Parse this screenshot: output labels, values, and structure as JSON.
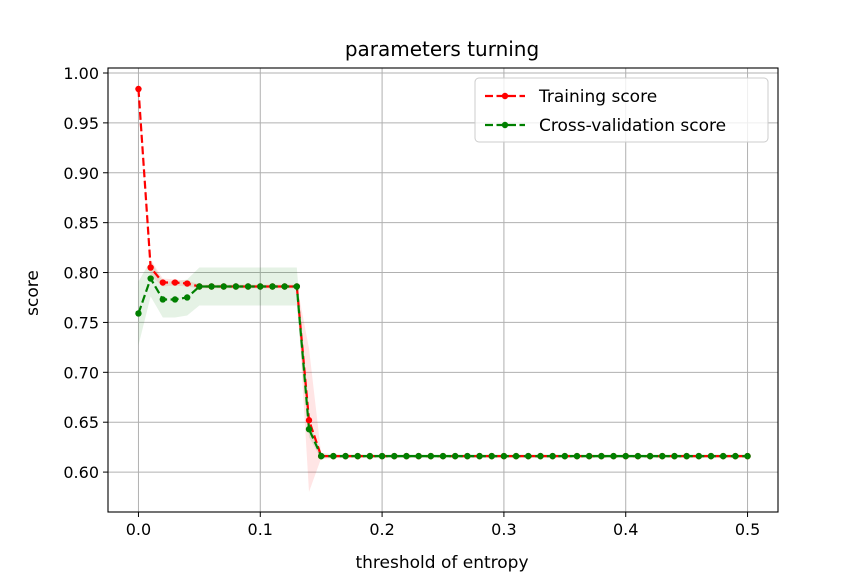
{
  "chart_data": {
    "type": "line",
    "title": "parameters turning",
    "xlabel": "threshold of entropy",
    "ylabel": "score",
    "xlim": [
      -0.025,
      0.525
    ],
    "ylim": [
      0.56,
      1.005
    ],
    "x_ticks": [
      0.0,
      0.1,
      0.2,
      0.3,
      0.4,
      0.5
    ],
    "x_tick_labels": [
      "0.0",
      "0.1",
      "0.2",
      "0.3",
      "0.4",
      "0.5"
    ],
    "y_ticks": [
      0.6,
      0.65,
      0.7,
      0.75,
      0.8,
      0.85,
      0.9,
      0.95,
      1.0
    ],
    "y_tick_labels": [
      "0.60",
      "0.65",
      "0.70",
      "0.75",
      "0.80",
      "0.85",
      "0.90",
      "0.95",
      "1.00"
    ],
    "grid": true,
    "legend_position": "top-right",
    "x": [
      0.0,
      0.01,
      0.02,
      0.03,
      0.04,
      0.05,
      0.06,
      0.07,
      0.08,
      0.09,
      0.1,
      0.11,
      0.12,
      0.13,
      0.14,
      0.15,
      0.16,
      0.17,
      0.18,
      0.19,
      0.2,
      0.21,
      0.22,
      0.23,
      0.24,
      0.25,
      0.26,
      0.27,
      0.28,
      0.29,
      0.3,
      0.31,
      0.32,
      0.33,
      0.34,
      0.35,
      0.36,
      0.37,
      0.38,
      0.39,
      0.4,
      0.41,
      0.42,
      0.43,
      0.44,
      0.45,
      0.46,
      0.47,
      0.48,
      0.49,
      0.5
    ],
    "series": [
      {
        "name": "Training score",
        "color": "#ff0000",
        "values": [
          0.984,
          0.805,
          0.79,
          0.79,
          0.789,
          0.786,
          0.786,
          0.786,
          0.786,
          0.786,
          0.786,
          0.786,
          0.786,
          0.786,
          0.652,
          0.616,
          0.616,
          0.616,
          0.616,
          0.616,
          0.616,
          0.616,
          0.616,
          0.616,
          0.616,
          0.616,
          0.616,
          0.616,
          0.616,
          0.616,
          0.616,
          0.616,
          0.616,
          0.616,
          0.616,
          0.616,
          0.616,
          0.616,
          0.616,
          0.616,
          0.616,
          0.616,
          0.616,
          0.616,
          0.616,
          0.616,
          0.616,
          0.616,
          0.616,
          0.616,
          0.616
        ],
        "std": [
          0.002,
          0.008,
          0.004,
          0.003,
          0.003,
          0.002,
          0.002,
          0.002,
          0.002,
          0.002,
          0.002,
          0.002,
          0.002,
          0.002,
          0.072,
          0.002,
          0.001,
          0.001,
          0.001,
          0.001,
          0.001,
          0.001,
          0.001,
          0.001,
          0.001,
          0.001,
          0.001,
          0.001,
          0.001,
          0.001,
          0.001,
          0.001,
          0.001,
          0.001,
          0.001,
          0.001,
          0.001,
          0.001,
          0.001,
          0.001,
          0.001,
          0.001,
          0.001,
          0.001,
          0.001,
          0.001,
          0.001,
          0.001,
          0.001,
          0.001,
          0.001
        ]
      },
      {
        "name": "Cross-validation score",
        "color": "#008000",
        "values": [
          0.759,
          0.794,
          0.773,
          0.773,
          0.775,
          0.786,
          0.786,
          0.786,
          0.786,
          0.786,
          0.786,
          0.786,
          0.786,
          0.786,
          0.643,
          0.616,
          0.616,
          0.616,
          0.616,
          0.616,
          0.616,
          0.616,
          0.616,
          0.616,
          0.616,
          0.616,
          0.616,
          0.616,
          0.616,
          0.616,
          0.616,
          0.616,
          0.616,
          0.616,
          0.616,
          0.616,
          0.616,
          0.616,
          0.616,
          0.616,
          0.616,
          0.616,
          0.616,
          0.616,
          0.616,
          0.616,
          0.616,
          0.616,
          0.616,
          0.616,
          0.616
        ],
        "std": [
          0.032,
          0.018,
          0.018,
          0.018,
          0.018,
          0.019,
          0.019,
          0.019,
          0.019,
          0.019,
          0.019,
          0.019,
          0.019,
          0.019,
          0.008,
          0.003,
          0.002,
          0.002,
          0.002,
          0.002,
          0.002,
          0.002,
          0.002,
          0.002,
          0.002,
          0.002,
          0.002,
          0.002,
          0.002,
          0.002,
          0.002,
          0.002,
          0.002,
          0.002,
          0.002,
          0.002,
          0.002,
          0.002,
          0.002,
          0.002,
          0.002,
          0.002,
          0.002,
          0.002,
          0.002,
          0.002,
          0.002,
          0.002,
          0.002,
          0.002,
          0.002
        ]
      }
    ]
  }
}
